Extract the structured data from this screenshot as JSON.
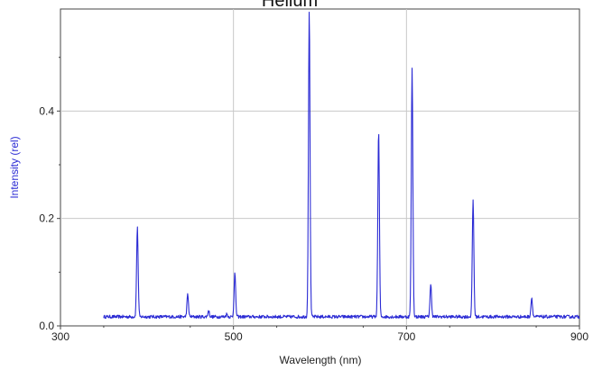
{
  "chart_data": {
    "type": "line",
    "title": "Helium",
    "xlabel": "Wavelength (nm)",
    "ylabel": "Intensity (rel)",
    "xlim": [
      300,
      900
    ],
    "ylim": [
      0,
      0.59
    ],
    "grid": true,
    "x_ticks": [
      300,
      500,
      700,
      900
    ],
    "x_tick_labels": [
      "300",
      "500",
      "700",
      "900"
    ],
    "y_ticks": [
      0.0,
      0.2,
      0.4
    ],
    "y_tick_labels": [
      "0.0",
      "0.2",
      "0.4"
    ],
    "baseline": 0.017,
    "x_range": [
      350,
      900
    ],
    "peaks": [
      {
        "x": 388.9,
        "y": 0.183
      },
      {
        "x": 447.1,
        "y": 0.058
      },
      {
        "x": 471.3,
        "y": 0.028
      },
      {
        "x": 492.2,
        "y": 0.022
      },
      {
        "x": 501.6,
        "y": 0.098
      },
      {
        "x": 587.6,
        "y": 0.585
      },
      {
        "x": 667.8,
        "y": 0.363
      },
      {
        "x": 706.5,
        "y": 0.478
      },
      {
        "x": 728.1,
        "y": 0.076
      },
      {
        "x": 777.0,
        "y": 0.235
      },
      {
        "x": 844.8,
        "y": 0.052
      }
    ]
  },
  "colors": {
    "series": "#2b2bd4",
    "ylabel": "#2b2bd4",
    "grid": "#c8c8c8",
    "axis": "#444444"
  }
}
